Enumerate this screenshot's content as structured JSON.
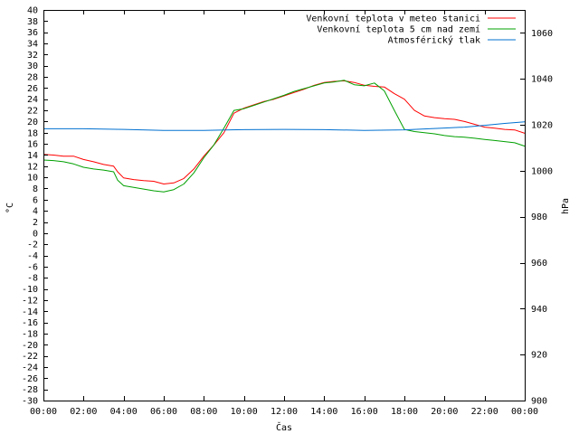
{
  "chart_data": {
    "type": "line",
    "xlabel": "Čas",
    "ylabel": "°C",
    "y2label": "hPa",
    "xlim": [
      0,
      24
    ],
    "ylim": [
      -30,
      40
    ],
    "y2lim": [
      900,
      1070
    ],
    "x_ticks": [
      "00:00",
      "02:00",
      "04:00",
      "06:00",
      "08:00",
      "10:00",
      "12:00",
      "14:00",
      "16:00",
      "18:00",
      "20:00",
      "22:00",
      "00:00"
    ],
    "y_ticks": [
      -30,
      -28,
      -26,
      -24,
      -22,
      -20,
      -18,
      -16,
      -14,
      -12,
      -10,
      -8,
      -6,
      -4,
      -2,
      0,
      2,
      4,
      6,
      8,
      10,
      12,
      14,
      16,
      18,
      20,
      22,
      24,
      26,
      28,
      30,
      32,
      34,
      36,
      38,
      40
    ],
    "y2_ticks": [
      900,
      920,
      940,
      960,
      980,
      1000,
      1020,
      1040,
      1060
    ],
    "legend_position": "top-right",
    "grid": false,
    "series": [
      {
        "name": "Venkovní teplota v meteo stanici",
        "color": "#ff0000",
        "axis": "left",
        "x": [
          0,
          0.5,
          1,
          1.5,
          2,
          2.5,
          3,
          3.5,
          3.7,
          4,
          4.5,
          5,
          5.5,
          6,
          6.5,
          7,
          7.5,
          8,
          8.5,
          9,
          9.5,
          10,
          10.5,
          11,
          11.5,
          12,
          12.5,
          13,
          13.5,
          14,
          14.5,
          15,
          15.5,
          16,
          16.5,
          17,
          17.5,
          18,
          18.5,
          19,
          19.5,
          20,
          20.5,
          21,
          21.5,
          22,
          22.5,
          23,
          23.5,
          24
        ],
        "y": [
          14.1,
          14.0,
          13.8,
          13.8,
          13.2,
          12.8,
          12.3,
          12.0,
          11.0,
          9.9,
          9.6,
          9.4,
          9.3,
          8.8,
          9.0,
          9.8,
          11.5,
          13.8,
          15.8,
          18.0,
          21.5,
          22.4,
          23.0,
          23.6,
          24.0,
          24.6,
          25.2,
          25.8,
          26.5,
          27.0,
          27.2,
          27.3,
          27.0,
          26.5,
          26.3,
          26.2,
          25.0,
          24.0,
          22.0,
          21.0,
          20.7,
          20.5,
          20.4,
          20.0,
          19.5,
          19.0,
          18.8,
          18.6,
          18.5,
          17.9
        ]
      },
      {
        "name": "Venkovní teplota 5 cm nad zemí",
        "color": "#00a000",
        "axis": "left",
        "x": [
          0,
          0.5,
          1,
          1.5,
          2,
          2.5,
          3,
          3.5,
          3.7,
          4,
          4.5,
          5,
          5.5,
          6,
          6.5,
          7,
          7.5,
          8,
          8.5,
          9,
          9.5,
          10,
          10.5,
          11,
          11.5,
          12,
          12.5,
          13,
          13.5,
          14,
          14.5,
          15,
          15.5,
          16,
          16.5,
          17,
          17.5,
          18,
          18.5,
          19,
          19.5,
          20,
          20.5,
          21,
          21.5,
          22,
          22.5,
          23,
          23.5,
          24
        ],
        "y": [
          13.1,
          13.0,
          12.8,
          12.4,
          11.8,
          11.5,
          11.3,
          11.0,
          9.5,
          8.5,
          8.2,
          7.9,
          7.6,
          7.4,
          7.8,
          8.8,
          10.8,
          13.5,
          15.8,
          18.8,
          22.0,
          22.3,
          22.9,
          23.5,
          24.1,
          24.7,
          25.4,
          25.9,
          26.4,
          26.9,
          27.1,
          27.4,
          26.6,
          26.4,
          26.9,
          25.5,
          22.0,
          18.6,
          18.2,
          18.0,
          17.8,
          17.5,
          17.3,
          17.2,
          17.0,
          16.8,
          16.6,
          16.4,
          16.2,
          15.6
        ]
      },
      {
        "name": "Atmosférický tlak",
        "color": "#0070d0",
        "axis": "right",
        "x": [
          0,
          2,
          4,
          6,
          8,
          10,
          12,
          14,
          16,
          18,
          20,
          21,
          22,
          23,
          24
        ],
        "y": [
          1018.3,
          1018.3,
          1018.0,
          1017.6,
          1017.6,
          1017.9,
          1018.0,
          1017.9,
          1017.6,
          1017.8,
          1018.6,
          1019.0,
          1019.8,
          1020.6,
          1021.3
        ]
      }
    ]
  }
}
